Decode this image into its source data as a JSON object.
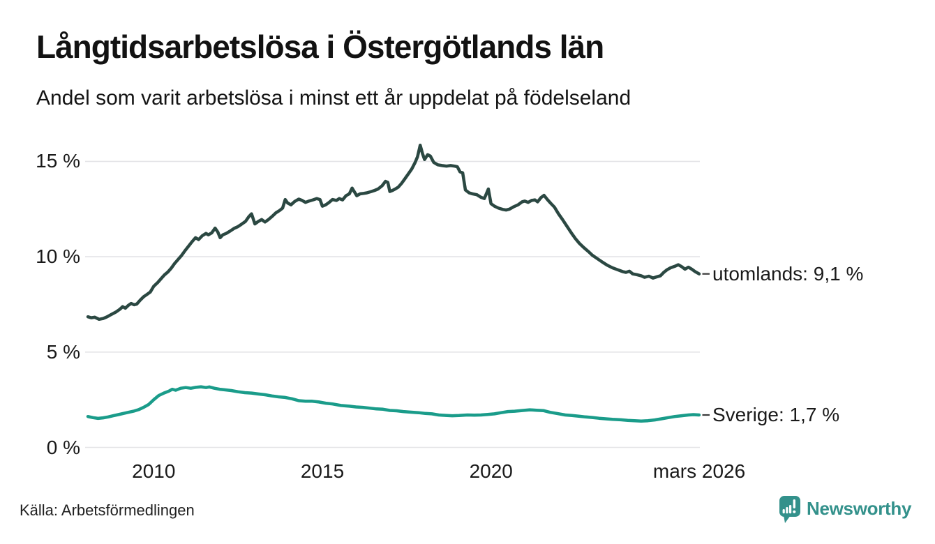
{
  "header": {
    "title": "Långtidsarbetslösa i Östergötlands län",
    "subtitle": "Andel som varit arbetslösa i minst ett år uppdelat på födelseland"
  },
  "chart_data": {
    "type": "line",
    "title": "Långtidsarbetslösa i Östergötlands län",
    "subtitle": "Andel som varit arbetslösa i minst ett år uppdelat på födelseland",
    "unit": "%",
    "x_range": [
      2008.05,
      2026.2
    ],
    "ylim": [
      0,
      16
    ],
    "grid": "horizontal",
    "legend_position": "right-of-line-end",
    "y_ticks": [
      {
        "value": 15,
        "label": "15 %"
      },
      {
        "value": 10,
        "label": "10 %"
      },
      {
        "value": 5,
        "label": "5 %"
      },
      {
        "value": 0,
        "label": "0 %"
      }
    ],
    "x_ticks": [
      {
        "value": 2010,
        "label": "2010"
      },
      {
        "value": 2015,
        "label": "2015"
      },
      {
        "value": 2020,
        "label": "2020"
      },
      {
        "value": 2026.17,
        "label": "mars 2026"
      }
    ],
    "series": [
      {
        "name": "utomlands",
        "label": "utomlands: 9,1 %",
        "end_value": "9,1 %",
        "color": "#2b4842",
        "points": [
          [
            2008.05,
            6.85
          ],
          [
            2008.15,
            6.8
          ],
          [
            2008.25,
            6.83
          ],
          [
            2008.38,
            6.72
          ],
          [
            2008.5,
            6.76
          ],
          [
            2008.62,
            6.85
          ],
          [
            2008.75,
            6.98
          ],
          [
            2008.88,
            7.1
          ],
          [
            2009.0,
            7.25
          ],
          [
            2009.08,
            7.38
          ],
          [
            2009.16,
            7.3
          ],
          [
            2009.25,
            7.45
          ],
          [
            2009.33,
            7.55
          ],
          [
            2009.42,
            7.48
          ],
          [
            2009.5,
            7.52
          ],
          [
            2009.6,
            7.72
          ],
          [
            2009.7,
            7.9
          ],
          [
            2009.8,
            8.02
          ],
          [
            2009.9,
            8.15
          ],
          [
            2010.0,
            8.45
          ],
          [
            2010.12,
            8.65
          ],
          [
            2010.22,
            8.85
          ],
          [
            2010.32,
            9.05
          ],
          [
            2010.42,
            9.2
          ],
          [
            2010.52,
            9.4
          ],
          [
            2010.62,
            9.65
          ],
          [
            2010.72,
            9.85
          ],
          [
            2010.82,
            10.05
          ],
          [
            2010.92,
            10.3
          ],
          [
            2011.03,
            10.55
          ],
          [
            2011.12,
            10.75
          ],
          [
            2011.24,
            11.0
          ],
          [
            2011.33,
            10.9
          ],
          [
            2011.44,
            11.1
          ],
          [
            2011.55,
            11.22
          ],
          [
            2011.62,
            11.15
          ],
          [
            2011.72,
            11.25
          ],
          [
            2011.82,
            11.5
          ],
          [
            2011.9,
            11.3
          ],
          [
            2011.97,
            11.0
          ],
          [
            2012.05,
            11.15
          ],
          [
            2012.15,
            11.22
          ],
          [
            2012.27,
            11.35
          ],
          [
            2012.38,
            11.48
          ],
          [
            2012.5,
            11.58
          ],
          [
            2012.6,
            11.7
          ],
          [
            2012.72,
            11.85
          ],
          [
            2012.82,
            12.1
          ],
          [
            2012.9,
            12.25
          ],
          [
            2013.0,
            11.72
          ],
          [
            2013.1,
            11.85
          ],
          [
            2013.2,
            11.95
          ],
          [
            2013.3,
            11.82
          ],
          [
            2013.4,
            11.95
          ],
          [
            2013.5,
            12.1
          ],
          [
            2013.62,
            12.3
          ],
          [
            2013.73,
            12.42
          ],
          [
            2013.82,
            12.55
          ],
          [
            2013.9,
            13.0
          ],
          [
            2013.97,
            12.82
          ],
          [
            2014.07,
            12.72
          ],
          [
            2014.18,
            12.9
          ],
          [
            2014.3,
            13.02
          ],
          [
            2014.4,
            12.95
          ],
          [
            2014.5,
            12.85
          ],
          [
            2014.6,
            12.92
          ],
          [
            2014.72,
            12.98
          ],
          [
            2014.83,
            13.05
          ],
          [
            2014.93,
            13.0
          ],
          [
            2015.0,
            12.65
          ],
          [
            2015.1,
            12.72
          ],
          [
            2015.2,
            12.85
          ],
          [
            2015.3,
            13.0
          ],
          [
            2015.42,
            12.95
          ],
          [
            2015.5,
            13.05
          ],
          [
            2015.6,
            12.98
          ],
          [
            2015.7,
            13.2
          ],
          [
            2015.8,
            13.3
          ],
          [
            2015.88,
            13.6
          ],
          [
            2015.95,
            13.4
          ],
          [
            2016.02,
            13.2
          ],
          [
            2016.12,
            13.3
          ],
          [
            2016.22,
            13.32
          ],
          [
            2016.32,
            13.35
          ],
          [
            2016.45,
            13.42
          ],
          [
            2016.55,
            13.48
          ],
          [
            2016.65,
            13.55
          ],
          [
            2016.77,
            13.72
          ],
          [
            2016.87,
            13.95
          ],
          [
            2016.94,
            13.9
          ],
          [
            2017.0,
            13.42
          ],
          [
            2017.08,
            13.48
          ],
          [
            2017.16,
            13.55
          ],
          [
            2017.25,
            13.65
          ],
          [
            2017.35,
            13.85
          ],
          [
            2017.45,
            14.1
          ],
          [
            2017.55,
            14.35
          ],
          [
            2017.65,
            14.6
          ],
          [
            2017.75,
            14.95
          ],
          [
            2017.82,
            15.25
          ],
          [
            2017.9,
            15.85
          ],
          [
            2017.97,
            15.4
          ],
          [
            2018.03,
            15.1
          ],
          [
            2018.12,
            15.35
          ],
          [
            2018.2,
            15.28
          ],
          [
            2018.3,
            14.95
          ],
          [
            2018.42,
            14.82
          ],
          [
            2018.55,
            14.78
          ],
          [
            2018.68,
            14.75
          ],
          [
            2018.8,
            14.78
          ],
          [
            2018.92,
            14.75
          ],
          [
            2019.0,
            14.72
          ],
          [
            2019.08,
            14.45
          ],
          [
            2019.16,
            14.4
          ],
          [
            2019.24,
            13.5
          ],
          [
            2019.35,
            13.35
          ],
          [
            2019.45,
            13.3
          ],
          [
            2019.58,
            13.25
          ],
          [
            2019.7,
            13.12
          ],
          [
            2019.8,
            13.05
          ],
          [
            2019.92,
            13.55
          ],
          [
            2020.0,
            12.78
          ],
          [
            2020.1,
            12.65
          ],
          [
            2020.22,
            12.55
          ],
          [
            2020.35,
            12.48
          ],
          [
            2020.45,
            12.45
          ],
          [
            2020.55,
            12.5
          ],
          [
            2020.67,
            12.62
          ],
          [
            2020.8,
            12.72
          ],
          [
            2020.92,
            12.88
          ],
          [
            2021.0,
            12.92
          ],
          [
            2021.1,
            12.85
          ],
          [
            2021.2,
            12.95
          ],
          [
            2021.3,
            12.98
          ],
          [
            2021.38,
            12.88
          ],
          [
            2021.48,
            13.1
          ],
          [
            2021.57,
            13.22
          ],
          [
            2021.67,
            13.0
          ],
          [
            2021.77,
            12.8
          ],
          [
            2021.88,
            12.6
          ],
          [
            2022.0,
            12.25
          ],
          [
            2022.12,
            11.95
          ],
          [
            2022.25,
            11.6
          ],
          [
            2022.38,
            11.25
          ],
          [
            2022.5,
            10.95
          ],
          [
            2022.62,
            10.7
          ],
          [
            2022.75,
            10.48
          ],
          [
            2022.88,
            10.28
          ],
          [
            2023.0,
            10.08
          ],
          [
            2023.15,
            9.9
          ],
          [
            2023.3,
            9.72
          ],
          [
            2023.45,
            9.55
          ],
          [
            2023.6,
            9.42
          ],
          [
            2023.75,
            9.32
          ],
          [
            2023.9,
            9.22
          ],
          [
            2024.0,
            9.18
          ],
          [
            2024.1,
            9.24
          ],
          [
            2024.2,
            9.1
          ],
          [
            2024.32,
            9.06
          ],
          [
            2024.45,
            9.0
          ],
          [
            2024.55,
            8.92
          ],
          [
            2024.68,
            8.98
          ],
          [
            2024.8,
            8.88
          ],
          [
            2024.92,
            8.95
          ],
          [
            2025.02,
            9.0
          ],
          [
            2025.12,
            9.18
          ],
          [
            2025.22,
            9.32
          ],
          [
            2025.32,
            9.42
          ],
          [
            2025.45,
            9.5
          ],
          [
            2025.55,
            9.58
          ],
          [
            2025.65,
            9.48
          ],
          [
            2025.75,
            9.35
          ],
          [
            2025.85,
            9.45
          ],
          [
            2025.95,
            9.35
          ],
          [
            2026.05,
            9.22
          ],
          [
            2026.17,
            9.1
          ]
        ]
      },
      {
        "name": "Sverige",
        "label": "Sverige: 1,7 %",
        "end_value": "1,7 %",
        "color": "#1a9c8a",
        "points": [
          [
            2008.05,
            1.62
          ],
          [
            2008.2,
            1.56
          ],
          [
            2008.35,
            1.52
          ],
          [
            2008.5,
            1.55
          ],
          [
            2008.65,
            1.6
          ],
          [
            2008.8,
            1.66
          ],
          [
            2008.95,
            1.72
          ],
          [
            2009.1,
            1.78
          ],
          [
            2009.25,
            1.84
          ],
          [
            2009.4,
            1.9
          ],
          [
            2009.55,
            1.98
          ],
          [
            2009.7,
            2.1
          ],
          [
            2009.85,
            2.25
          ],
          [
            2010.0,
            2.5
          ],
          [
            2010.15,
            2.72
          ],
          [
            2010.3,
            2.85
          ],
          [
            2010.45,
            2.95
          ],
          [
            2010.55,
            3.05
          ],
          [
            2010.65,
            3.0
          ],
          [
            2010.8,
            3.1
          ],
          [
            2010.95,
            3.14
          ],
          [
            2011.1,
            3.1
          ],
          [
            2011.25,
            3.15
          ],
          [
            2011.4,
            3.18
          ],
          [
            2011.55,
            3.14
          ],
          [
            2011.65,
            3.17
          ],
          [
            2011.8,
            3.1
          ],
          [
            2011.95,
            3.05
          ],
          [
            2012.1,
            3.02
          ],
          [
            2012.3,
            2.98
          ],
          [
            2012.5,
            2.92
          ],
          [
            2012.7,
            2.87
          ],
          [
            2012.9,
            2.85
          ],
          [
            2013.1,
            2.8
          ],
          [
            2013.3,
            2.76
          ],
          [
            2013.5,
            2.7
          ],
          [
            2013.7,
            2.65
          ],
          [
            2013.9,
            2.62
          ],
          [
            2014.1,
            2.55
          ],
          [
            2014.3,
            2.45
          ],
          [
            2014.5,
            2.42
          ],
          [
            2014.7,
            2.42
          ],
          [
            2014.9,
            2.38
          ],
          [
            2015.1,
            2.32
          ],
          [
            2015.3,
            2.28
          ],
          [
            2015.55,
            2.2
          ],
          [
            2015.8,
            2.16
          ],
          [
            2016.0,
            2.12
          ],
          [
            2016.2,
            2.1
          ],
          [
            2016.4,
            2.06
          ],
          [
            2016.6,
            2.02
          ],
          [
            2016.8,
            2.0
          ],
          [
            2017.0,
            1.94
          ],
          [
            2017.2,
            1.92
          ],
          [
            2017.4,
            1.88
          ],
          [
            2017.6,
            1.85
          ],
          [
            2017.85,
            1.82
          ],
          [
            2018.05,
            1.78
          ],
          [
            2018.25,
            1.76
          ],
          [
            2018.45,
            1.7
          ],
          [
            2018.65,
            1.68
          ],
          [
            2018.85,
            1.66
          ],
          [
            2019.05,
            1.67
          ],
          [
            2019.3,
            1.7
          ],
          [
            2019.5,
            1.69
          ],
          [
            2019.7,
            1.7
          ],
          [
            2019.9,
            1.73
          ],
          [
            2020.1,
            1.76
          ],
          [
            2020.3,
            1.82
          ],
          [
            2020.5,
            1.88
          ],
          [
            2020.7,
            1.9
          ],
          [
            2020.95,
            1.94
          ],
          [
            2021.15,
            1.97
          ],
          [
            2021.35,
            1.95
          ],
          [
            2021.55,
            1.93
          ],
          [
            2021.75,
            1.84
          ],
          [
            2021.95,
            1.78
          ],
          [
            2022.2,
            1.7
          ],
          [
            2022.4,
            1.67
          ],
          [
            2022.6,
            1.64
          ],
          [
            2022.8,
            1.6
          ],
          [
            2023.0,
            1.57
          ],
          [
            2023.2,
            1.53
          ],
          [
            2023.4,
            1.5
          ],
          [
            2023.6,
            1.47
          ],
          [
            2023.85,
            1.45
          ],
          [
            2024.05,
            1.42
          ],
          [
            2024.25,
            1.4
          ],
          [
            2024.45,
            1.38
          ],
          [
            2024.65,
            1.4
          ],
          [
            2024.85,
            1.44
          ],
          [
            2025.05,
            1.5
          ],
          [
            2025.25,
            1.56
          ],
          [
            2025.45,
            1.62
          ],
          [
            2025.65,
            1.66
          ],
          [
            2025.85,
            1.7
          ],
          [
            2026.0,
            1.72
          ],
          [
            2026.17,
            1.7
          ]
        ]
      }
    ]
  },
  "footer": {
    "source": "Källa: Arbetsförmedlingen",
    "logo_text": "Newsworthy"
  },
  "colors": {
    "grid": "#e4e4e7",
    "text": "#1a1a1a",
    "connector": "#3a3a3a",
    "logo": "#33918b",
    "background": "#ffffff"
  }
}
